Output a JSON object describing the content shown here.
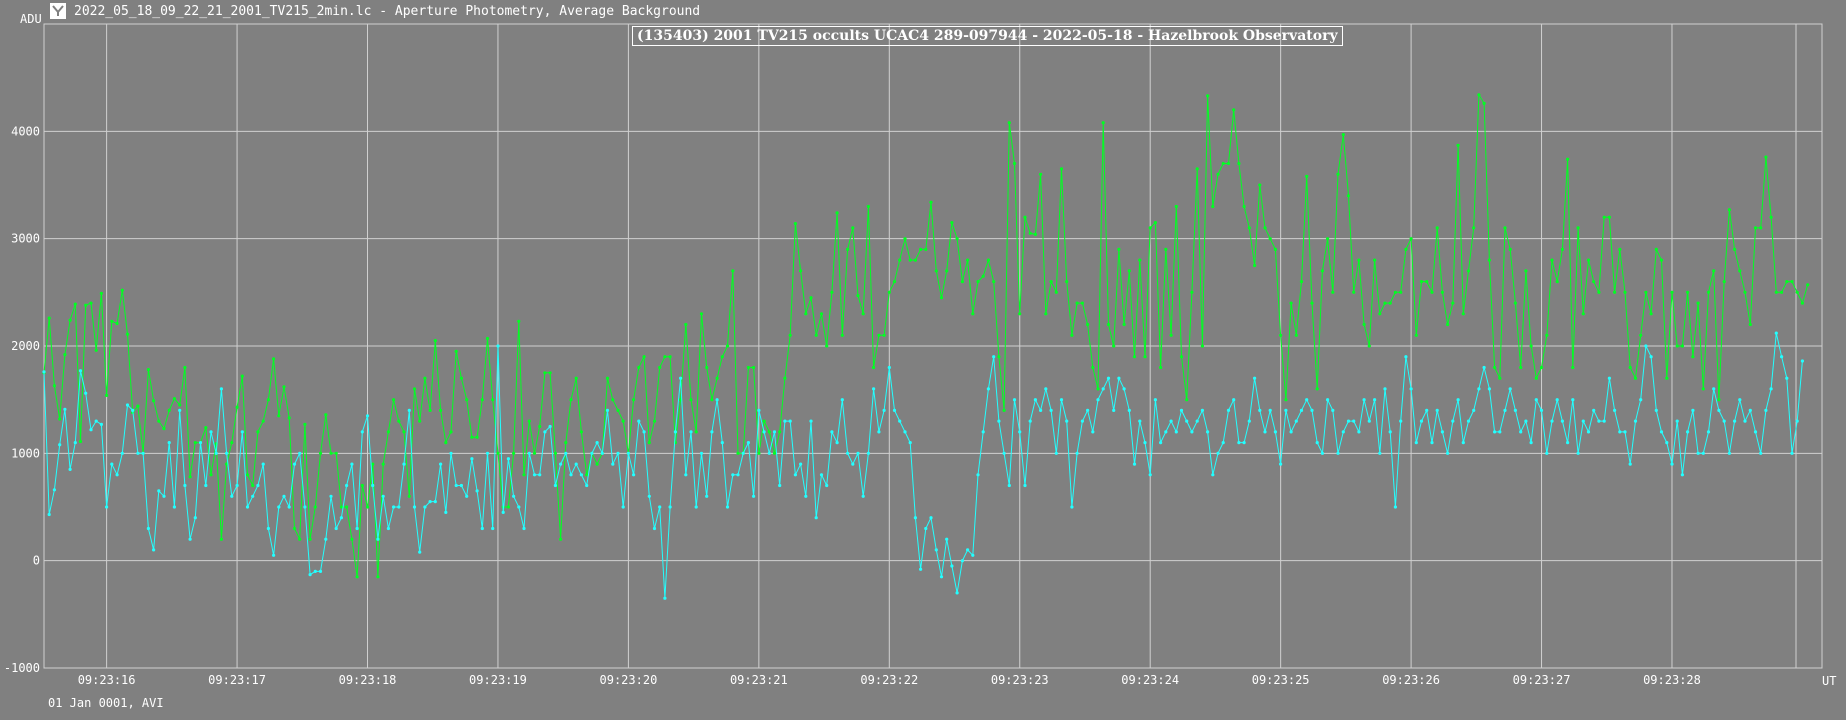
{
  "window": {
    "title": "2022_05_18_09_22_21_2001_TV215_2min.lc - Aperture Photometry, Average Background",
    "footer": "01 Jan 0001, AVI"
  },
  "colors": {
    "background": "#808080",
    "grid": "#d0d0d0",
    "target": "#00ff22",
    "comparison": "#22ffff"
  },
  "chart_data": {
    "type": "line",
    "title": "(135403) 2001 TV215 occults UCAC4 289-097944 - 2022-05-18 - Hazelbrook Observatory",
    "ylabel": "ADU",
    "xlabel": "UT",
    "ylim": [
      -1000,
      5000
    ],
    "yticks": [
      -1000,
      0,
      1000,
      2000,
      3000,
      4000
    ],
    "xlim_seconds": [
      15.52,
      29.15
    ],
    "xticks": [
      {
        "t": 16,
        "label": "09:23:16"
      },
      {
        "t": 17,
        "label": "09:23:17"
      },
      {
        "t": 18,
        "label": "09:23:18"
      },
      {
        "t": 19,
        "label": "09:23:19"
      },
      {
        "t": 20,
        "label": "09:23:20"
      },
      {
        "t": 21,
        "label": "09:23:21"
      },
      {
        "t": 22,
        "label": "09:23:22"
      },
      {
        "t": 23,
        "label": "09:23:23"
      },
      {
        "t": 24,
        "label": "09:23:24"
      },
      {
        "t": 25,
        "label": "09:23:25"
      },
      {
        "t": 26,
        "label": "09:23:26"
      },
      {
        "t": 27,
        "label": "09:23:27"
      },
      {
        "t": 28,
        "label": "09:23:28"
      }
    ],
    "grid": true,
    "sample_interval_seconds": 0.04,
    "series": [
      {
        "values": [
          1750,
          2260,
          1630,
          1320,
          1920,
          2240,
          2390,
          1110,
          2380,
          2400,
          1960,
          2490,
          1540,
          2230,
          2210,
          2520,
          2110,
          1380,
          1440,
          1000,
          1780,
          1490,
          1300,
          1230,
          1400,
          1510,
          1450,
          1800,
          780,
          1100,
          1100,
          1240,
          800,
          1090,
          200,
          900,
          1100,
          1430,
          1720,
          800,
          700,
          1200,
          1300,
          1500,
          1880,
          1350,
          1620,
          1330,
          300,
          200,
          1270,
          200,
          500,
          1000,
          1360,
          1000,
          1000,
          500,
          500,
          200,
          -150,
          700,
          500,
          900,
          -150,
          900,
          1200,
          1500,
          1300,
          1200,
          600,
          1600,
          1300,
          1700,
          1400,
          2050,
          1400,
          1100,
          1200,
          1950,
          1700,
          1500,
          1150,
          1150,
          1500,
          2070,
          1500,
          1000,
          500,
          500,
          1000,
          2230,
          800,
          1300,
          1000,
          1250,
          1750,
          1750,
          1000,
          200,
          1100,
          1500,
          1700,
          1200,
          800,
          1000,
          900,
          1000,
          1700,
          1500,
          1400,
          1300,
          1000,
          1500,
          1800,
          1900,
          1100,
          1300,
          1800,
          1900,
          1900,
          1100,
          1500,
          2200,
          1500,
          1200,
          2300,
          1800,
          1500,
          1700,
          1900,
          2000,
          2700,
          1000,
          1000,
          1800,
          1800,
          1000,
          1300,
          1200,
          1000,
          1200,
          1700,
          2100,
          3140,
          2700,
          2300,
          2450,
          2100,
          2300,
          2000,
          2500,
          3240,
          2100,
          2900,
          3100,
          2470,
          2300,
          3300,
          1800,
          2100,
          2100,
          2500,
          2600,
          2800,
          3000,
          2800,
          2800,
          2900,
          2900,
          3340,
          2700,
          2450,
          2700,
          3150,
          3000,
          2600,
          2800,
          2300,
          2600,
          2650,
          2800,
          2600,
          1900,
          1400,
          4080,
          3700,
          2300,
          3200,
          3050,
          3040,
          3600,
          2300,
          2600,
          2500,
          3650,
          2600,
          2100,
          2400,
          2400,
          2200,
          1800,
          1600,
          4080,
          2200,
          2000,
          2900,
          2200,
          2700,
          1900,
          2800,
          1900,
          3100,
          3150,
          1800,
          2900,
          2100,
          3300,
          1900,
          1500,
          2500,
          3650,
          2000,
          4330,
          3300,
          3600,
          3700,
          3700,
          4200,
          3700,
          3300,
          3100,
          2750,
          3500,
          3100,
          3000,
          2900,
          2100,
          1500,
          2400,
          2100,
          2600,
          3580,
          2400,
          1600,
          2700,
          3000,
          2500,
          3600,
          3970,
          3400,
          2500,
          2800,
          2200,
          2000,
          2800,
          2300,
          2400,
          2400,
          2500,
          2500,
          2900,
          3000,
          2100,
          2600,
          2600,
          2500,
          3100,
          2500,
          2200,
          2400,
          3870,
          2300,
          2700,
          3100,
          4340,
          4260,
          2800,
          1800,
          1700,
          3100,
          2900,
          2400,
          1800,
          2700,
          2000,
          1700,
          1800,
          2100,
          2800,
          2600,
          2900,
          3740,
          1800,
          3100,
          2300,
          2800,
          2600,
          2500,
          3200,
          3200,
          2500,
          2900,
          2500,
          1800,
          1700,
          2100,
          2500,
          2300,
          2900,
          2800,
          1700,
          2500,
          2000,
          2000,
          2500,
          1900,
          2400,
          1600,
          2500,
          2700,
          1500,
          2600,
          3270,
          2900,
          2700,
          2500,
          2200,
          3100,
          3100,
          3760,
          3200,
          2500,
          2500,
          2600,
          2600,
          2500,
          2400,
          2570
        ]
      },
      {
        "values": [
          1760,
          430,
          660,
          1080,
          1410,
          850,
          1100,
          1770,
          1560,
          1220,
          1300,
          1270,
          500,
          900,
          800,
          1000,
          1450,
          1400,
          1000,
          1000,
          300,
          100,
          650,
          600,
          1100,
          500,
          1400,
          700,
          200,
          400,
          1100,
          700,
          1200,
          1000,
          1600,
          1000,
          600,
          700,
          1200,
          500,
          600,
          700,
          900,
          300,
          50,
          500,
          600,
          500,
          900,
          1000,
          500,
          -130,
          -100,
          -100,
          200,
          600,
          300,
          400,
          700,
          900,
          300,
          1200,
          1350,
          700,
          200,
          600,
          300,
          500,
          500,
          900,
          1400,
          500,
          80,
          500,
          550,
          550,
          900,
          450,
          1000,
          700,
          700,
          600,
          950,
          650,
          300,
          1000,
          300,
          2000,
          450,
          950,
          600,
          500,
          300,
          1000,
          800,
          800,
          1200,
          1250,
          700,
          900,
          1000,
          800,
          900,
          800,
          700,
          1000,
          1100,
          1000,
          1400,
          900,
          1000,
          500,
          1000,
          800,
          1300,
          1200,
          600,
          300,
          500,
          -350,
          500,
          1200,
          1700,
          800,
          1200,
          500,
          1000,
          600,
          1200,
          1500,
          1100,
          500,
          800,
          800,
          1000,
          1100,
          600,
          1400,
          1200,
          1000,
          1200,
          700,
          1300,
          1300,
          800,
          900,
          600,
          1300,
          400,
          800,
          700,
          1200,
          1100,
          1500,
          1000,
          900,
          1000,
          600,
          1000,
          1600,
          1200,
          1400,
          1800,
          1400,
          1300,
          1200,
          1100,
          400,
          -80,
          300,
          400,
          100,
          -150,
          200,
          -50,
          -300,
          0,
          100,
          50,
          800,
          1200,
          1600,
          1900,
          1300,
          1000,
          700,
          1500,
          1200,
          700,
          1300,
          1500,
          1400,
          1600,
          1400,
          1000,
          1500,
          1300,
          500,
          1000,
          1300,
          1400,
          1200,
          1500,
          1600,
          1700,
          1400,
          1700,
          1600,
          1400,
          900,
          1300,
          1100,
          800,
          1500,
          1100,
          1200,
          1300,
          1200,
          1400,
          1300,
          1200,
          1300,
          1400,
          1200,
          800,
          1000,
          1100,
          1400,
          1500,
          1100,
          1100,
          1300,
          1700,
          1400,
          1200,
          1400,
          1200,
          900,
          1400,
          1200,
          1300,
          1400,
          1500,
          1400,
          1100,
          1000,
          1500,
          1400,
          1000,
          1200,
          1300,
          1300,
          1200,
          1500,
          1300,
          1500,
          1000,
          1600,
          1200,
          500,
          1300,
          1900,
          1600,
          1100,
          1300,
          1400,
          1100,
          1400,
          1200,
          1000,
          1300,
          1500,
          1100,
          1300,
          1400,
          1600,
          1800,
          1600,
          1200,
          1200,
          1400,
          1600,
          1400,
          1200,
          1300,
          1100,
          1500,
          1400,
          1000,
          1300,
          1500,
          1300,
          1100,
          1500,
          1000,
          1300,
          1200,
          1400,
          1300,
          1300,
          1700,
          1400,
          1200,
          1200,
          900,
          1300,
          1500,
          2000,
          1900,
          1400,
          1200,
          1100,
          900,
          1300,
          800,
          1200,
          1400,
          1000,
          1000,
          1200,
          1600,
          1400,
          1300,
          1000,
          1300,
          1500,
          1300,
          1400,
          1200,
          1000,
          1400,
          1600,
          2120,
          1900,
          1700,
          1000,
          1300,
          1860
        ]
      }
    ]
  }
}
